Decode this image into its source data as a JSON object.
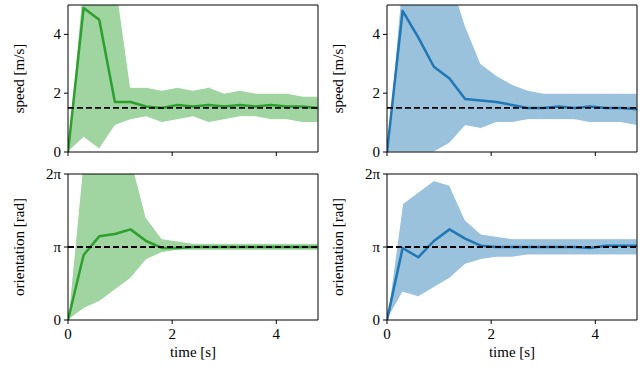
{
  "chart_data": [
    {
      "type": "line",
      "ylabel": "speed [m/s]",
      "tick_labels": "y",
      "x": [
        0,
        0.3,
        0.6,
        0.9,
        1.2,
        1.5,
        1.8,
        2.1,
        2.4,
        2.7,
        3.0,
        3.3,
        3.6,
        3.9,
        4.2,
        4.5,
        4.8
      ],
      "xlim": [
        0,
        4.8
      ],
      "xticks": [
        0,
        2,
        4
      ],
      "ylim": [
        0,
        5
      ],
      "yticks": [
        0,
        2,
        4
      ],
      "series": [
        {
          "color": "#2ca02c",
          "values": [
            0,
            4.9,
            4.5,
            1.7,
            1.7,
            1.55,
            1.5,
            1.6,
            1.55,
            1.6,
            1.55,
            1.6,
            1.55,
            1.6,
            1.55,
            1.55,
            1.5
          ],
          "upper": [
            0,
            6,
            6,
            6,
            2.2,
            2.2,
            2.1,
            2.2,
            2.1,
            2.2,
            2.0,
            2.1,
            2.0,
            2.0,
            2.0,
            1.9,
            1.9
          ],
          "lower": [
            0,
            0.5,
            0.1,
            0.9,
            1.1,
            1.2,
            1.0,
            1.1,
            1.2,
            1.0,
            1.1,
            1.2,
            1.2,
            1.1,
            1.1,
            1.0,
            1.0
          ]
        }
      ],
      "reference_line": {
        "value": 1.5,
        "color": "#000000",
        "line_style": "dashed"
      }
    },
    {
      "type": "line",
      "ylabel": "speed [m/s]",
      "tick_labels": "y",
      "x": [
        0,
        0.3,
        0.6,
        0.9,
        1.2,
        1.5,
        1.8,
        2.1,
        2.4,
        2.7,
        3.0,
        3.3,
        3.6,
        3.9,
        4.2,
        4.5,
        4.8
      ],
      "xlim": [
        0,
        4.8
      ],
      "xticks": [
        0,
        2,
        4
      ],
      "ylim": [
        0,
        5
      ],
      "yticks": [
        0,
        2,
        4
      ],
      "series": [
        {
          "color": "#1f77b4",
          "values": [
            0,
            4.8,
            3.9,
            2.9,
            2.5,
            1.8,
            1.75,
            1.7,
            1.6,
            1.5,
            1.5,
            1.55,
            1.5,
            1.55,
            1.5,
            1.5,
            1.45
          ],
          "upper": [
            0,
            6,
            6,
            6,
            6,
            4.3,
            3.0,
            2.6,
            2.3,
            2.1,
            2.0,
            2.0,
            2.0,
            2.0,
            2.0,
            2.0,
            2.0
          ],
          "lower": [
            0,
            0,
            0,
            0,
            0.3,
            0.9,
            0.8,
            1.0,
            1.0,
            1.1,
            1.1,
            1.1,
            1.1,
            1.0,
            1.0,
            1.0,
            0.9
          ]
        }
      ],
      "reference_line": {
        "value": 1.5,
        "color": "#000000",
        "line_style": "dashed"
      }
    },
    {
      "type": "line",
      "ylabel": "orientation [rad]",
      "xlabel": "time [s]",
      "tick_labels": true,
      "x": [
        0,
        0.3,
        0.6,
        0.9,
        1.2,
        1.5,
        1.8,
        2.1,
        2.4,
        2.7,
        3.0,
        3.3,
        3.6,
        3.9,
        4.2,
        4.5,
        4.8
      ],
      "xlim": [
        0,
        4.8
      ],
      "xticks": [
        0,
        2,
        4
      ],
      "ylim": [
        0,
        6.2832
      ],
      "yticks": [
        0,
        {
          "value": 3.1416,
          "label": "π"
        },
        {
          "value": 6.2832,
          "label": "2π"
        }
      ],
      "series": [
        {
          "color": "#2ca02c",
          "values": [
            0,
            2.8,
            3.6,
            3.7,
            3.9,
            3.4,
            3.1,
            3.1,
            3.14,
            3.14,
            3.14,
            3.14,
            3.14,
            3.14,
            3.14,
            3.14,
            3.14
          ],
          "upper": [
            0,
            7,
            7,
            7,
            7,
            4.4,
            3.5,
            3.4,
            3.3,
            3.3,
            3.3,
            3.3,
            3.3,
            3.3,
            3.3,
            3.3,
            3.3
          ],
          "lower": [
            0,
            0.5,
            0.8,
            1.3,
            1.8,
            2.6,
            2.9,
            3.0,
            3.0,
            3.0,
            3.0,
            3.0,
            3.0,
            3.0,
            3.0,
            3.0,
            3.0
          ]
        }
      ],
      "reference_line": {
        "value": 3.1416,
        "color": "#000000",
        "line_style": "dashed"
      }
    },
    {
      "type": "line",
      "ylabel": "orientation [rad]",
      "xlabel": "time [s]",
      "tick_labels": true,
      "x": [
        0,
        0.3,
        0.6,
        0.9,
        1.2,
        1.5,
        1.8,
        2.1,
        2.4,
        2.7,
        3.0,
        3.3,
        3.6,
        3.9,
        4.2,
        4.5,
        4.8
      ],
      "xlim": [
        0,
        4.8
      ],
      "xticks": [
        0,
        2,
        4
      ],
      "ylim": [
        0,
        6.2832
      ],
      "yticks": [
        0,
        {
          "value": 3.1416,
          "label": "π"
        },
        {
          "value": 6.2832,
          "label": "2π"
        }
      ],
      "series": [
        {
          "color": "#1f77b4",
          "values": [
            0,
            3.1,
            2.7,
            3.4,
            3.9,
            3.5,
            3.2,
            3.14,
            3.14,
            3.14,
            3.14,
            3.14,
            3.14,
            3.1,
            3.2,
            3.2,
            3.2
          ],
          "upper": [
            0,
            5,
            5.5,
            6,
            5.8,
            4.3,
            3.7,
            3.6,
            3.5,
            3.5,
            3.5,
            3.5,
            3.5,
            3.5,
            3.5,
            3.5,
            3.5
          ],
          "lower": [
            0,
            1.2,
            1.0,
            1.4,
            1.8,
            2.4,
            2.6,
            2.7,
            2.7,
            2.8,
            2.8,
            2.8,
            2.8,
            2.8,
            2.8,
            2.8,
            2.8
          ]
        }
      ],
      "reference_line": {
        "value": 3.1416,
        "color": "#000000",
        "line_style": "dashed"
      }
    }
  ]
}
